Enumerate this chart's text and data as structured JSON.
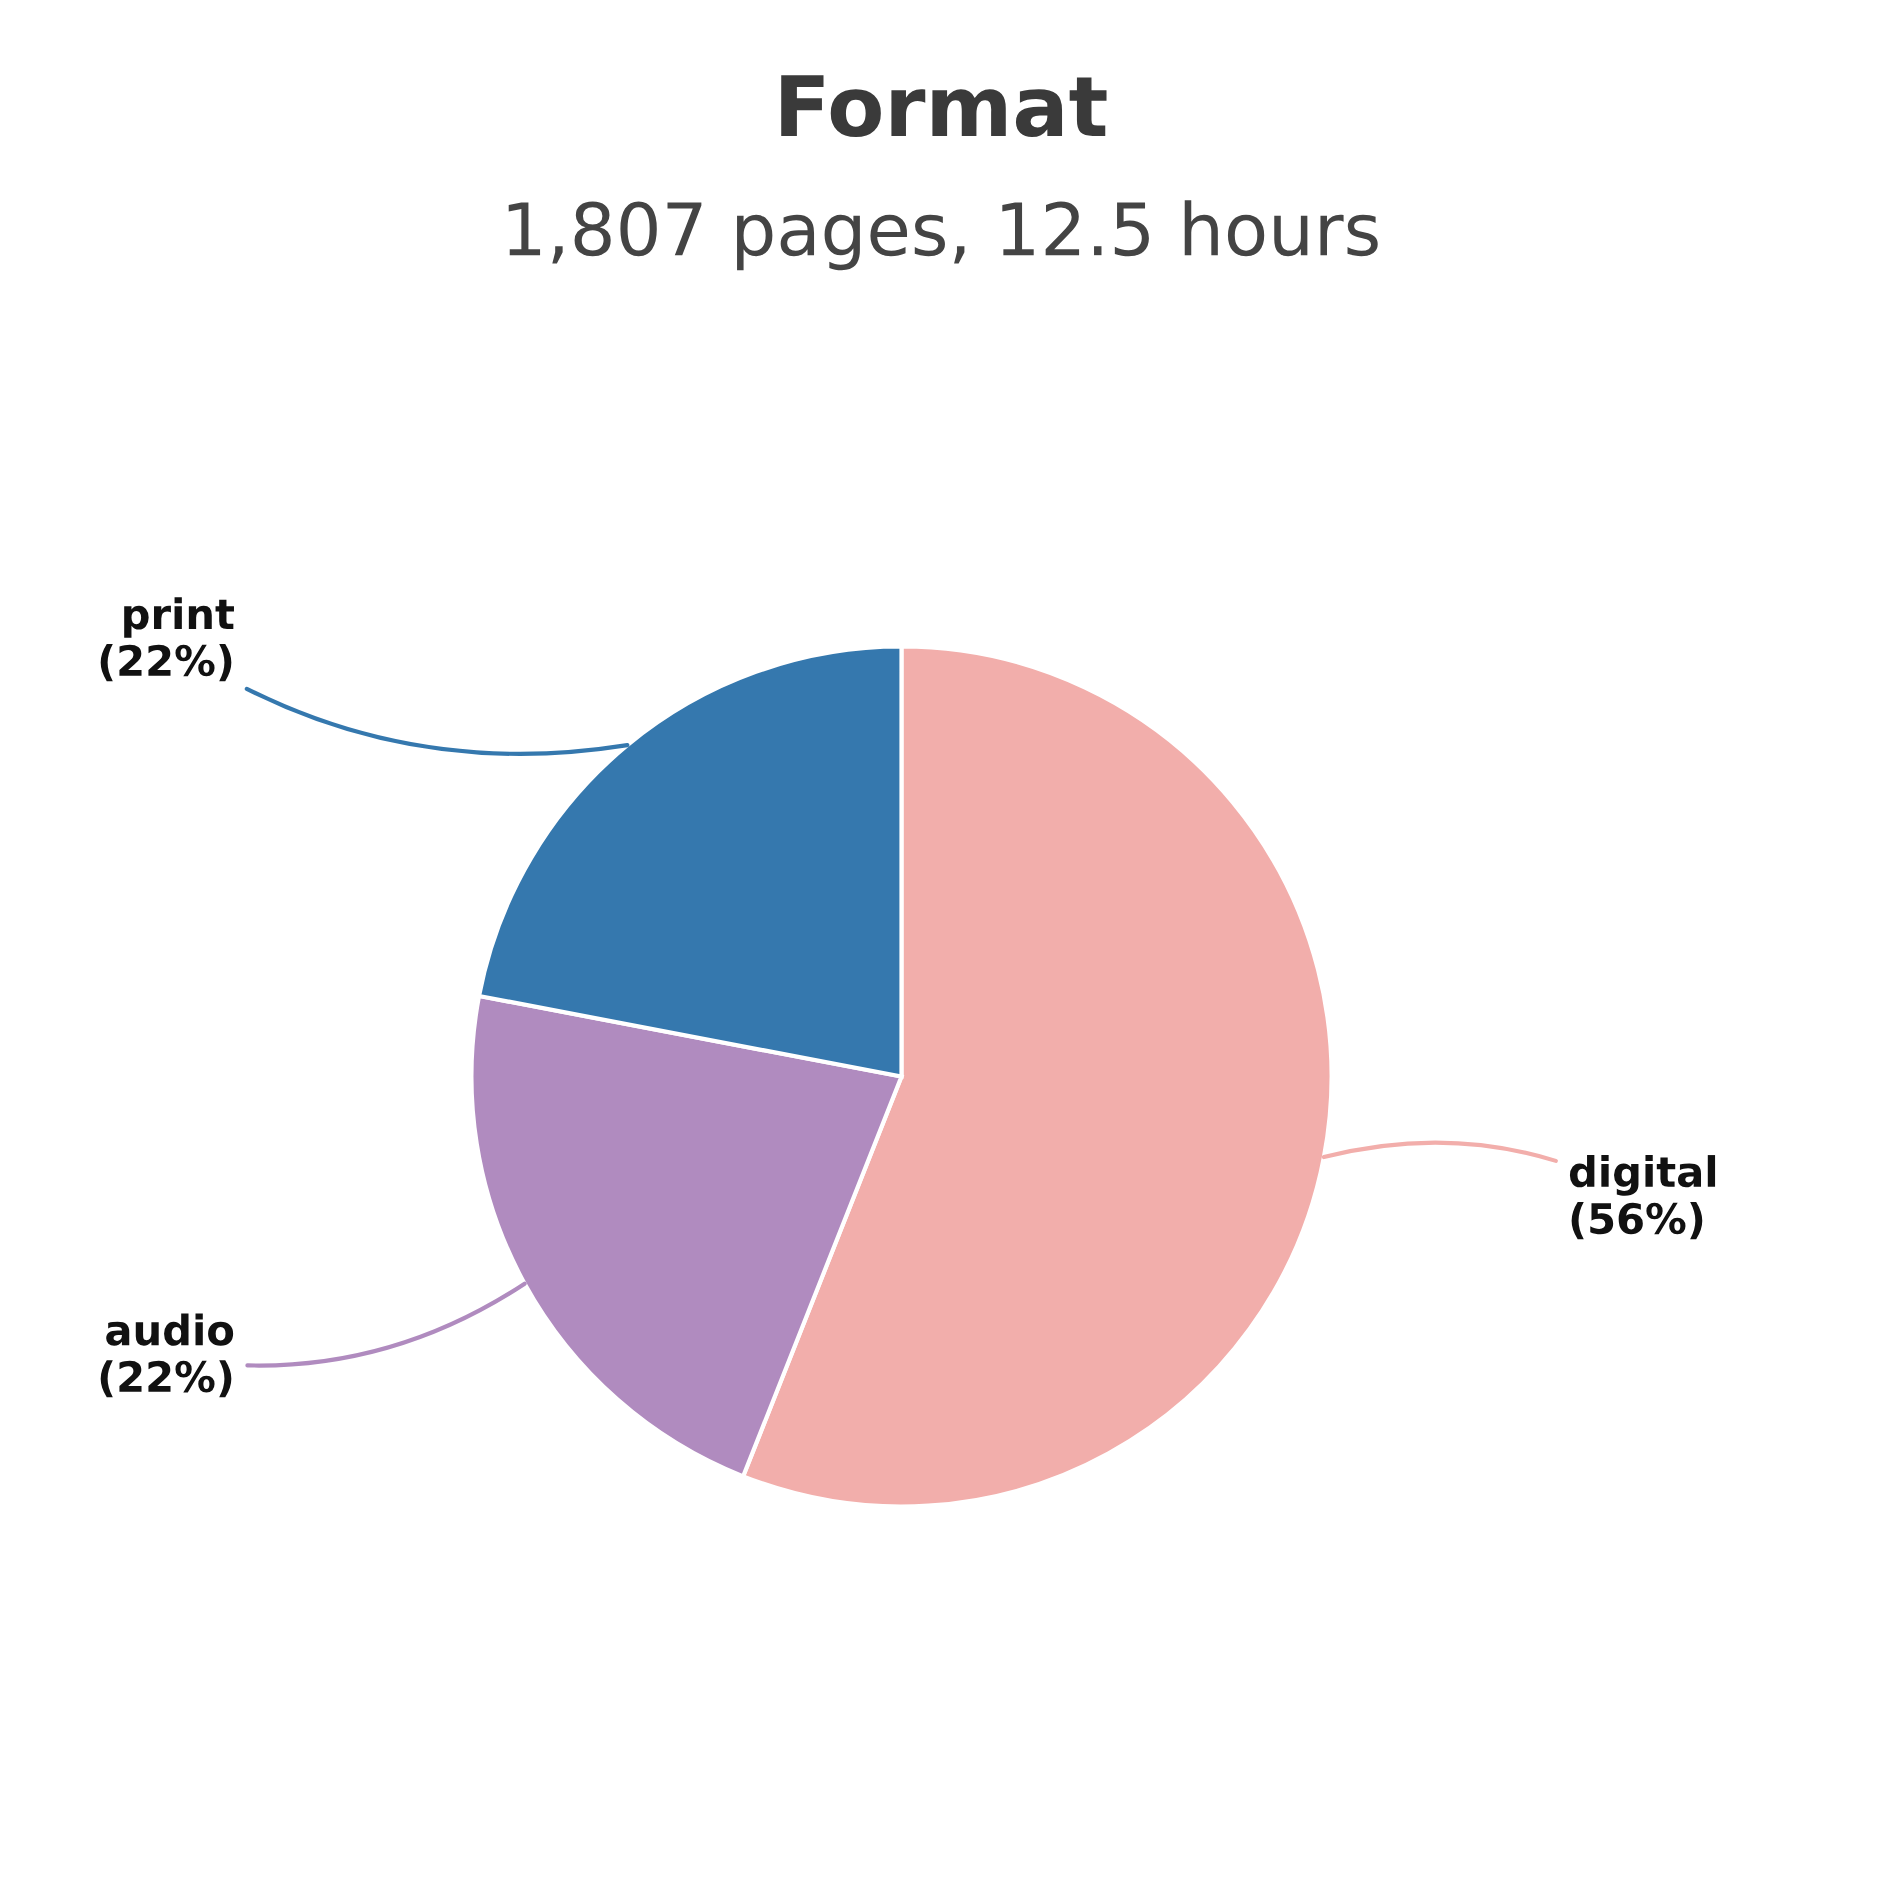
{
  "chart_data": {
    "type": "pie",
    "title": "Format",
    "subtitle": "1,807 pages, 12.5 hours",
    "categories": [
      "digital",
      "audio",
      "print"
    ],
    "values": [
      56,
      22,
      22
    ],
    "value_labels": [
      "(56%)",
      "(22%)",
      "(22%)"
    ],
    "colors": [
      "#f2aeab",
      "#b08bbf",
      "#3578ae"
    ],
    "legend": false
  }
}
